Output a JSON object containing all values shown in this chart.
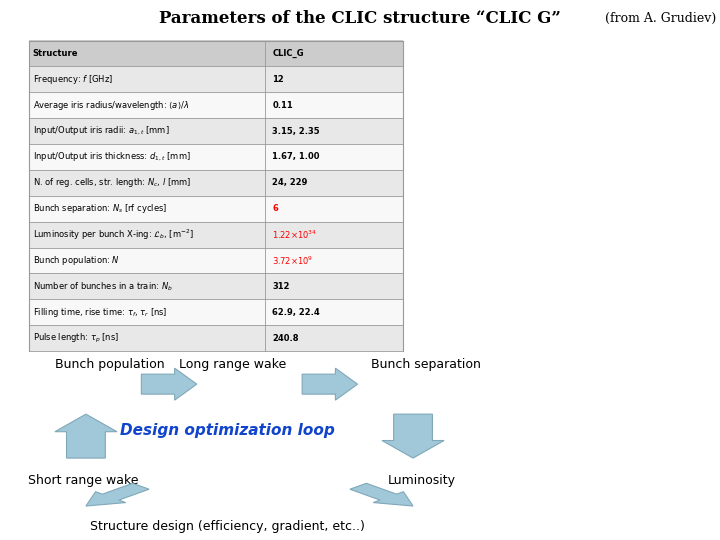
{
  "title_main": "Parameters of the CLIC structure “CLIC G”",
  "title_sub": " (from A. Grudiev)",
  "table_rows": [
    [
      "Structure",
      "CLIC_G",
      "black",
      true
    ],
    [
      "Frequency: $f$ [GHz]",
      "12",
      "black",
      false
    ],
    [
      "Average iris radius/wavelength: $\\langle a\\rangle/\\lambda$",
      "0.11",
      "black",
      false
    ],
    [
      "Input/Output iris radii: $a_{1,t}$ [mm]",
      "3.15, 2.35",
      "black",
      false
    ],
    [
      "Input/Output iris thickness: $d_{1,t}$ [mm]",
      "1.67, 1.00",
      "black",
      false
    ],
    [
      "N. of reg. cells, str. length: $N_c$, $l$ [mm]",
      "24, 229",
      "black",
      false
    ],
    [
      "Bunch separation: $N_s$ [rf cycles]",
      "6",
      "red",
      false
    ],
    [
      "Luminosity per bunch X-ing: $\\mathcal{L}_b$, [m$^{-2}$]",
      "$1.22{\\times}10^{34}$",
      "red",
      false
    ],
    [
      "Bunch population: $N$",
      "$3.72{\\times}10^{9}$",
      "red",
      false
    ],
    [
      "Number of bunches in a train: $N_b$",
      "312",
      "black",
      false
    ],
    [
      "Filling time, rise time: $\\tau_f$, $\\tau_r$ [ns]",
      "62.9, 22.4",
      "black",
      false
    ],
    [
      "Pulse length: $\\tau_p$ [ns]",
      "240.8",
      "black",
      false
    ]
  ],
  "bg_color": "#ffffff",
  "table_header_bg": "#cccccc",
  "table_row_bg_odd": "#e8e8e8",
  "table_row_bg_even": "#f8f8f8",
  "arrow_color": "#a0c8d8",
  "arrow_edge_color": "#80a8b8"
}
